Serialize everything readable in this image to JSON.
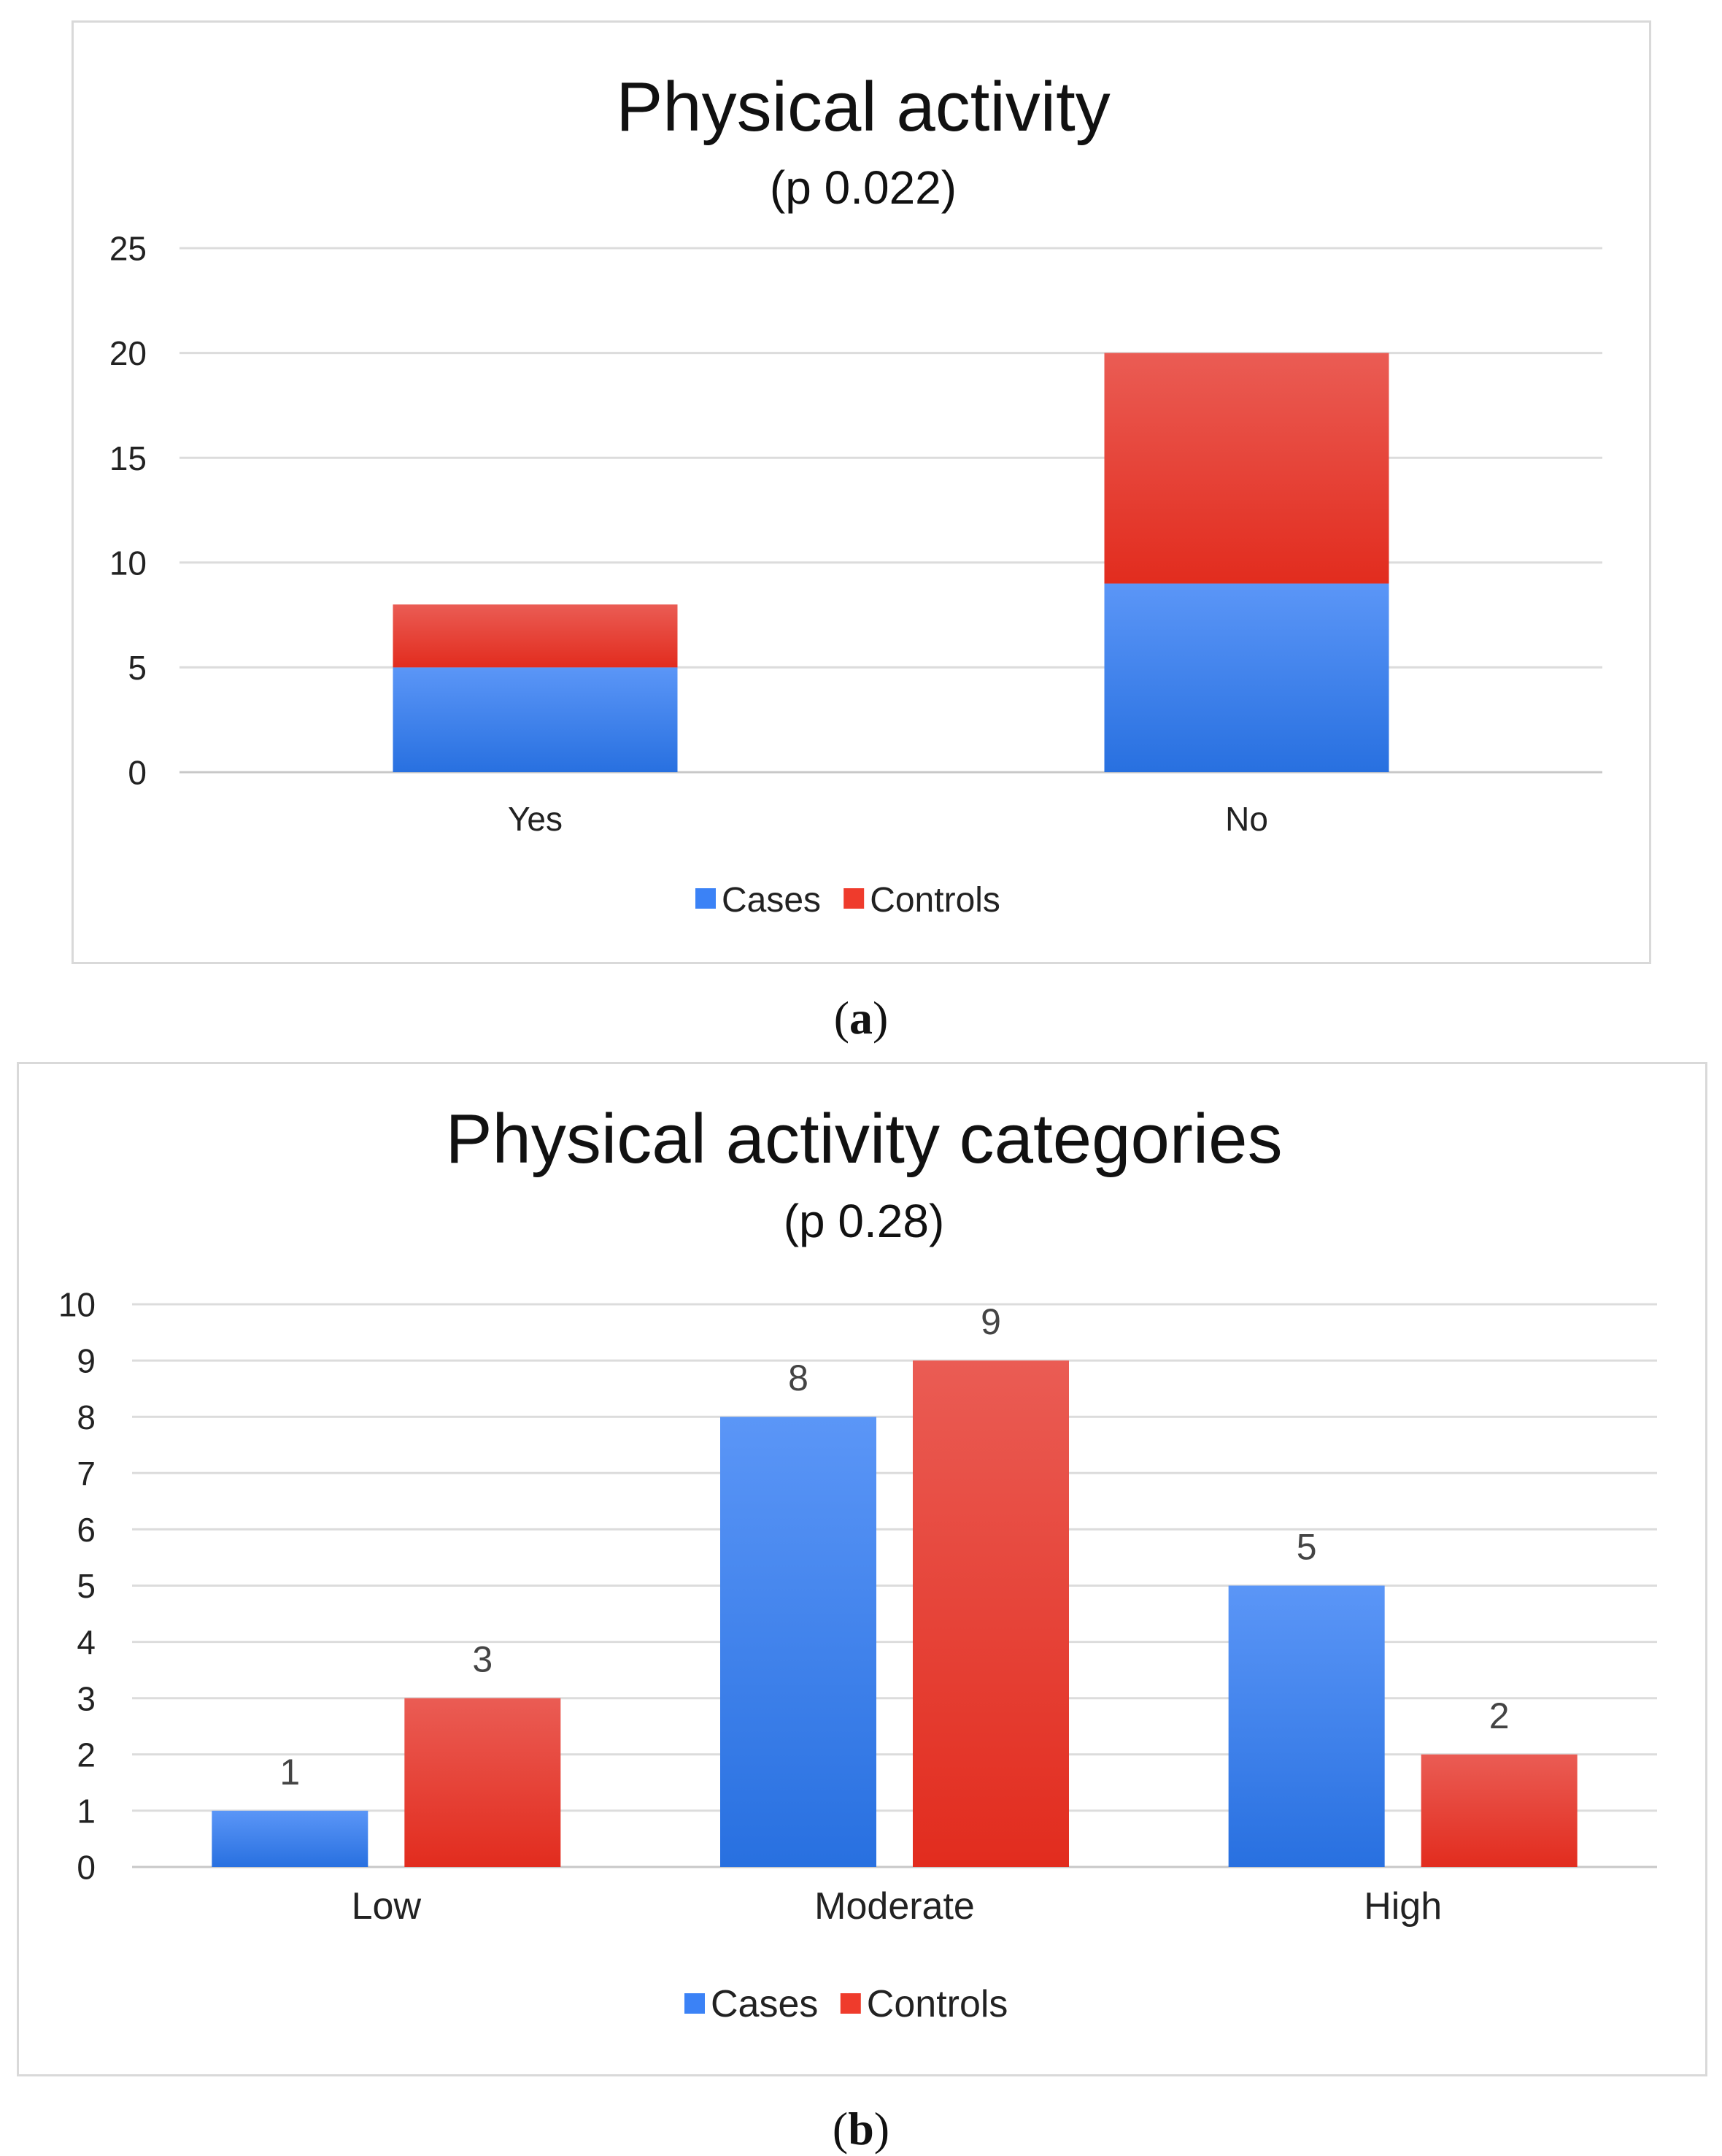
{
  "chart_data": [
    {
      "type": "bar",
      "stacked": true,
      "title": "Physical activity",
      "subtitle": "(p 0.022)",
      "categories": [
        "Yes",
        "No"
      ],
      "series": [
        {
          "name": "Cases",
          "values": [
            5,
            9
          ],
          "color": "#3b82f6"
        },
        {
          "name": "Controls",
          "values": [
            3,
            11
          ],
          "color": "#ef3b2c"
        }
      ],
      "ylim": [
        0,
        25
      ],
      "yticks": [
        "0",
        "5",
        "10",
        "15",
        "20",
        "25"
      ],
      "grid": true,
      "legend": "bottom",
      "data_labels": false,
      "caption": "a"
    },
    {
      "type": "bar",
      "stacked": false,
      "title": "Physical activity categories",
      "subtitle": "(p 0.28)",
      "categories": [
        "Low",
        "Moderate",
        "High"
      ],
      "series": [
        {
          "name": "Cases",
          "values": [
            1,
            8,
            5
          ],
          "color": "#3b82f6"
        },
        {
          "name": "Controls",
          "values": [
            3,
            9,
            2
          ],
          "color": "#ef3b2c"
        }
      ],
      "ylim": [
        0,
        10
      ],
      "yticks": [
        "0",
        "1",
        "2",
        "3",
        "4",
        "5",
        "6",
        "7",
        "8",
        "9",
        "10"
      ],
      "grid": true,
      "legend": "bottom",
      "data_labels": true,
      "caption": "b"
    }
  ]
}
